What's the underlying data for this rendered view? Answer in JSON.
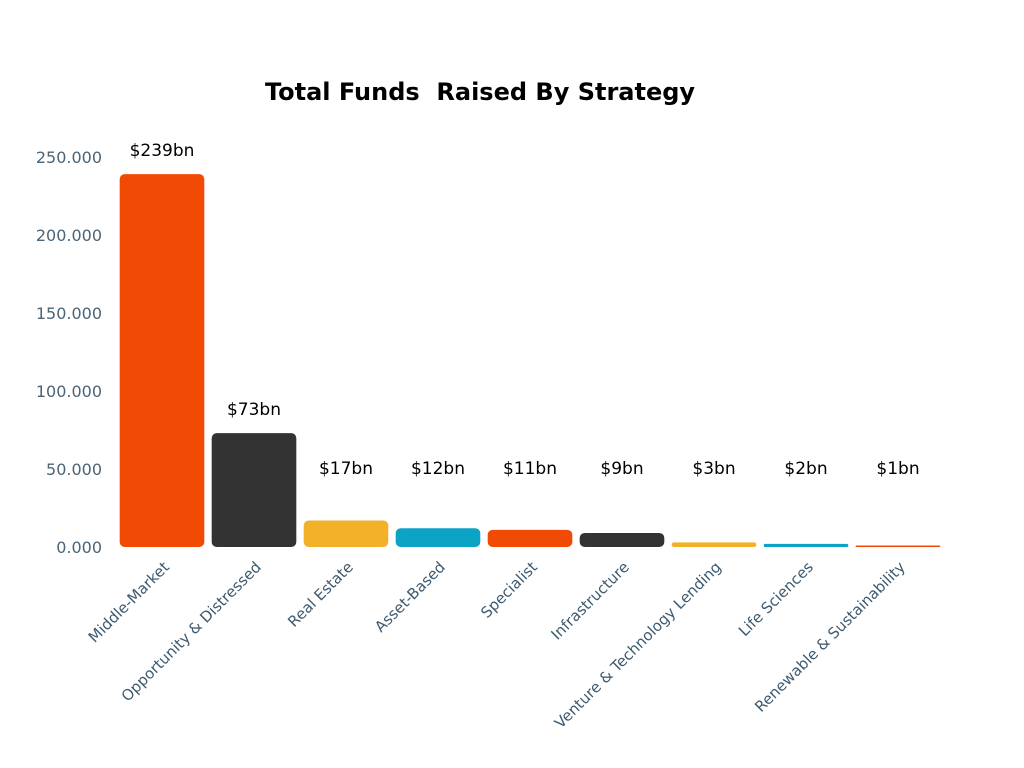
{
  "chart_data": {
    "type": "bar",
    "title": "Total Funds  Raised By Strategy",
    "xlabel": "",
    "ylabel": "",
    "ylim": [
      0,
      250
    ],
    "yticks": [
      {
        "value": 0,
        "label": "0.000"
      },
      {
        "value": 50,
        "label": "50.000"
      },
      {
        "value": 100,
        "label": "100.000"
      },
      {
        "value": 150,
        "label": "150.000"
      },
      {
        "value": 200,
        "label": "200.000"
      },
      {
        "value": 250,
        "label": "250.000"
      }
    ],
    "grid": false,
    "legend": "none",
    "categories": [
      "Middle-Market",
      "Opportunity & Distressed",
      "Real Estate",
      "Asset-Based",
      "Specialist",
      "Infrastructure",
      "Venture & Technology Lending",
      "Life Sciences",
      "Renewable & Sustainability"
    ],
    "values": [
      239,
      73,
      17,
      12,
      11,
      9,
      3,
      2,
      1
    ],
    "data_labels": [
      "$239bn",
      "$73bn",
      "$17bn",
      "$12bn",
      "$11bn",
      "$9bn",
      "$3bn",
      "$2bn",
      "$1bn"
    ],
    "colors": [
      "#f04a05",
      "#333333",
      "#f2b129",
      "#0ca4c4",
      "#f04a05",
      "#333333",
      "#f2b129",
      "#0ca4c4",
      "#f04a05"
    ]
  }
}
